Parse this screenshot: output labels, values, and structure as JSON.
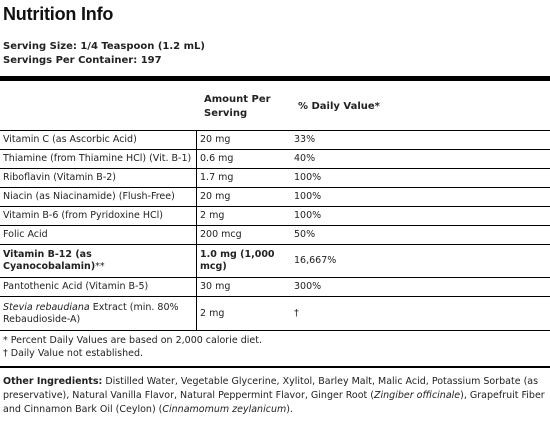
{
  "title": "Nutrition Info",
  "serving_size": "Serving Size: 1/4 Teaspoon (1.2 mL)",
  "servings_per_container": "Servings Per Container: 197",
  "header": {
    "amount_line1": "Amount Per",
    "amount_line2": "Serving",
    "daily_value": "% Daily Value*"
  },
  "rows": [
    {
      "name": "Vitamin C (as Ascorbic Acid)",
      "amount": "20 mg",
      "dv": "33%"
    },
    {
      "name": "Thiamine (from Thiamine HCl) (Vit. B-1)",
      "amount": "0.6 mg",
      "dv": "40%"
    },
    {
      "name": "Riboflavin (Vitamin B-2)",
      "amount": "1.7 mg",
      "dv": "100%"
    },
    {
      "name": "Niacin (as Niacinamide) (Flush-Free)",
      "amount": "20 mg",
      "dv": "100%"
    },
    {
      "name": "Vitamin B-6 (from Pyridoxine HCl)",
      "amount": "2 mg",
      "dv": "100%"
    },
    {
      "name": "Folic Acid",
      "amount": "200 mcg",
      "dv": "50%"
    },
    {
      "name_bold": "Vitamin B-12 (as Cyanocobalamin)",
      "name_suffix": "**",
      "amount_line1": "1.0 mg (1,000",
      "amount_line2": "mcg)",
      "dv": "16,667%"
    },
    {
      "name": "Pantothenic Acid (Vitamin B-5)",
      "amount": "30 mg",
      "dv": "300%"
    },
    {
      "name_italic": "Stevia rebaudiana",
      "name_rest": " Extract (min. 80%",
      "name_line2": "Rebaudioside-A)",
      "amount": "2 mg",
      "dv": "†"
    }
  ],
  "footnotes": {
    "percent": "* Percent Daily Values are based on 2,000 calorie diet.",
    "dagger": "† Daily Value not established."
  },
  "ingredients": {
    "label": "Other Ingredients:",
    "text1": " Distilled Water, Vegetable Glycerine, Xylitol, Barley Malt, Malic Acid, Potassium Sorbate (as preservative), Natural Vanilla Flavor, Natural Peppermint Flavor, Ginger Root (",
    "italic1": "Zingiber officinale",
    "text2": "), Grapefruit Fiber and Cinnamon Bark Oil (Ceylon) (",
    "italic2": "Cinnamomum zeylanicum",
    "text3": ")."
  }
}
